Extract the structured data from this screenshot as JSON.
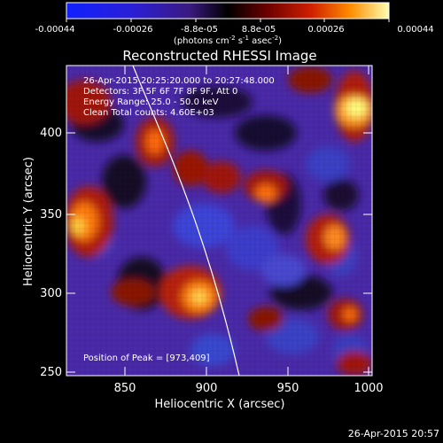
{
  "colorbar": {
    "ticks": [
      "-0.00044",
      "-0.00026",
      "-8.8e-05",
      "8.8e-05",
      "0.00026",
      "0.00044"
    ],
    "units_main": "(photons cm",
    "units_sup1": "-2",
    "units_mid1": " s",
    "units_sup2": "-1",
    "units_mid2": " asec",
    "units_sup3": "-2",
    "units_end": ")"
  },
  "title": "Reconstructed RHESSI Image",
  "info": {
    "line1": "26-Apr-2015 20:25:20.000 to 20:27:48.000",
    "line2": "Detectors: 3F 5F 6F 7F 8F 9F, Att 0",
    "line3": "Energy Range: 25.0 - 50.0 keV",
    "line4": "Clean     Total counts: 4.60E+03"
  },
  "peak_label": "Position of Peak = [973,409]",
  "axes": {
    "x_label": "Heliocentric X (arcsec)",
    "y_label": "Heliocentric Y (arcsec)",
    "x_ticks": [
      "850",
      "900",
      "950",
      "1000"
    ],
    "y_ticks": [
      "250",
      "300",
      "350",
      "400"
    ]
  },
  "footer_date": "26-Apr-2015 20:57",
  "colors": {
    "colorbar_start": "#0000ff",
    "colorbar_mid": "#000000",
    "colorbar_end": "#ffffa0",
    "limb": "#ffffff"
  }
}
